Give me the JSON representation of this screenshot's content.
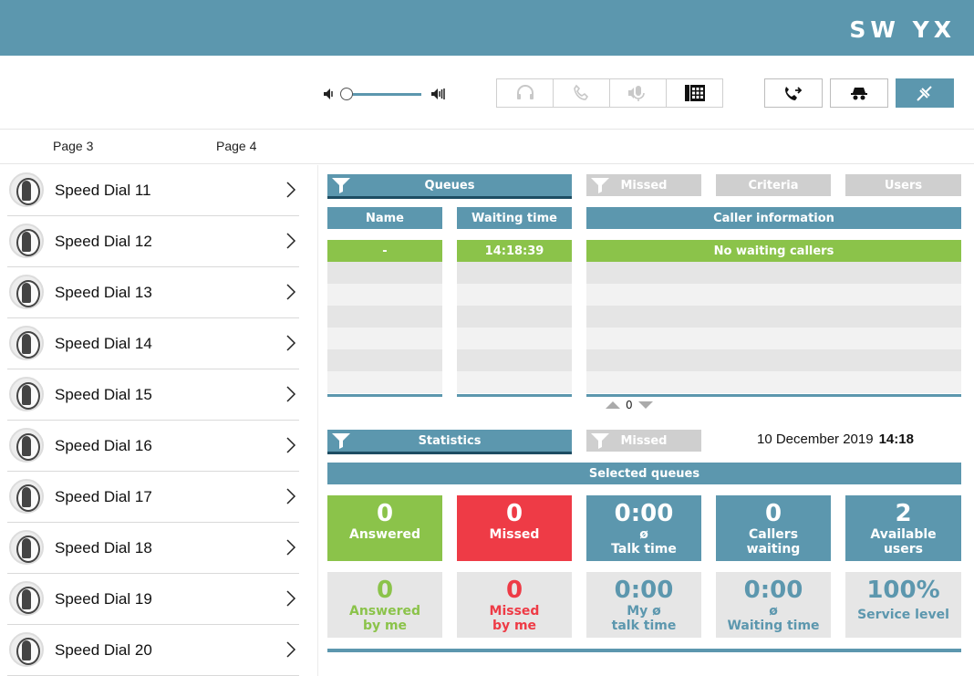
{
  "app": {
    "logo": "SW YX"
  },
  "toolbar": {
    "volume_level": 0.0,
    "icons": [
      "volume-low-icon",
      "volume-high-icon",
      "headset-icon",
      "phone-icon",
      "microphone-icon",
      "dialpad-icon",
      "call-forward-icon",
      "incognito-icon",
      "disconnected-icon"
    ]
  },
  "pages": [
    "Page 3",
    "Page 4"
  ],
  "speed_dials": [
    "Speed Dial 11",
    "Speed Dial 12",
    "Speed Dial 13",
    "Speed Dial 14",
    "Speed Dial 15",
    "Speed Dial 16",
    "Speed Dial 17",
    "Speed Dial 18",
    "Speed Dial 19",
    "Speed Dial 20"
  ],
  "queues": {
    "tabs": {
      "queues": "Queues",
      "missed": "Missed",
      "criteria": "Criteria",
      "users": "Users"
    },
    "columns": {
      "name": "Name",
      "waiting_time": "Waiting time",
      "caller_information": "Caller information"
    },
    "row": {
      "name": "-",
      "waiting_time": "14:18:39",
      "caller_information": "No waiting callers"
    },
    "pager_count": "0"
  },
  "statistics": {
    "tabs": {
      "statistics": "Statistics",
      "missed": "Missed"
    },
    "date": "10 December 2019",
    "time": "14:18",
    "selected_queues": "Selected queues",
    "tiles": [
      {
        "value": "0",
        "label1": "Answered",
        "label2": ""
      },
      {
        "value": "0",
        "label1": "Missed",
        "label2": ""
      },
      {
        "value": "0:00",
        "label1": "ø",
        "label2": "Talk time"
      },
      {
        "value": "0",
        "label1": "Callers",
        "label2": "waiting"
      },
      {
        "value": "2",
        "label1": "Available",
        "label2": "users"
      }
    ],
    "my_tiles": [
      {
        "value": "0",
        "label1": "Answered",
        "label2": "by me"
      },
      {
        "value": "0",
        "label1": "Missed",
        "label2": "by me"
      },
      {
        "value": "0:00",
        "label1": "My ø",
        "label2": "talk time"
      },
      {
        "value": "0:00",
        "label1": "ø",
        "label2": "Waiting time"
      },
      {
        "value": "100%",
        "label1": "Service level",
        "label2": ""
      }
    ]
  },
  "colors": {
    "header_blue": "#5c97ae",
    "green": "#8bc34a",
    "red": "#ee3b46",
    "grey_tab": "#cfcfcf"
  }
}
